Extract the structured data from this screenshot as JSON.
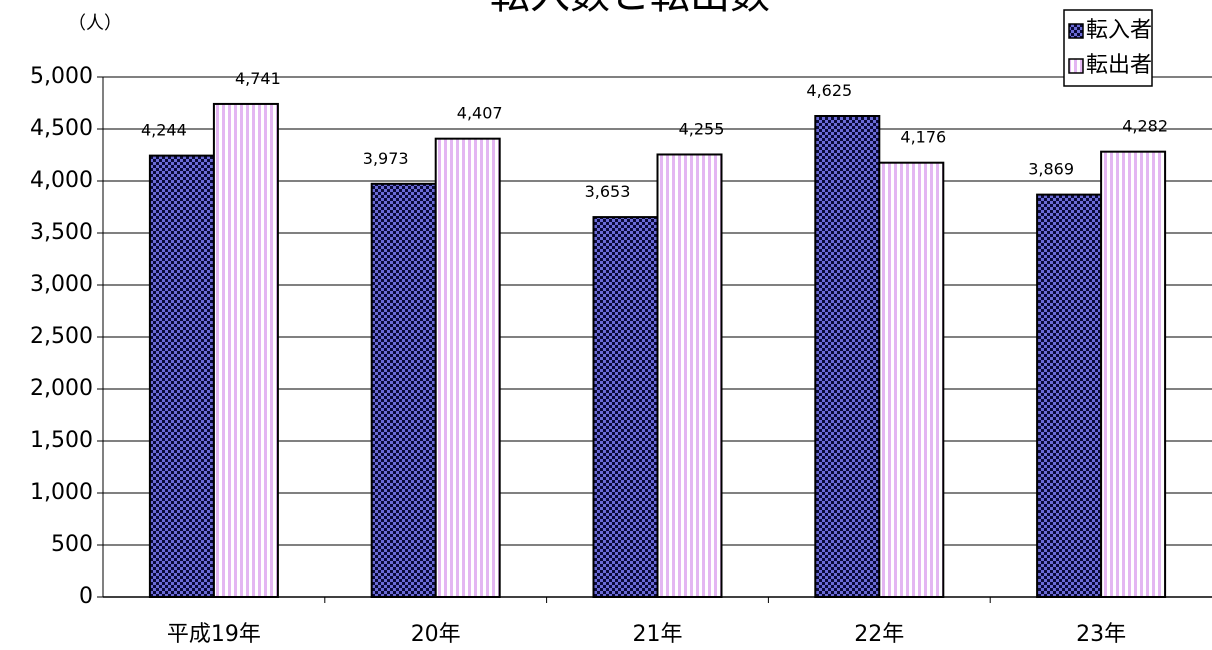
{
  "chart_data": {
    "type": "bar",
    "title": "転入数と転出数",
    "y_label": "（人）",
    "categories": [
      "平成19年",
      "20年",
      "21年",
      "22年",
      "23年"
    ],
    "series": [
      {
        "name": "転入者",
        "color": "#6b6bd6",
        "pattern": "checker",
        "values": [
          4244,
          3973,
          3653,
          4625,
          3869
        ],
        "value_labels": [
          "4,244",
          "3,973",
          "3,653",
          "4,625",
          "3,869"
        ]
      },
      {
        "name": "転出者",
        "color": "#e3b6f2",
        "pattern": "stripes",
        "values": [
          4741,
          4407,
          4255,
          4176,
          4282
        ],
        "value_labels": [
          "4,741",
          "4,407",
          "4,255",
          "4,176",
          "4,282"
        ]
      }
    ],
    "ylim": [
      0,
      5000
    ],
    "yticks": [
      0,
      500,
      {
        "value": 1000,
        "label": "1,000"
      },
      {
        "value": 1500,
        "label": "1,500"
      },
      {
        "value": 2000,
        "label": "2,000"
      },
      {
        "value": 2500,
        "label": "2,500"
      },
      {
        "value": 3000,
        "label": "3,000"
      },
      {
        "value": 3500,
        "label": "3,500"
      },
      {
        "value": 4000,
        "label": "4,000"
      },
      {
        "value": 4500,
        "label": "4,500"
      },
      {
        "value": 5000,
        "label": "5,000"
      }
    ],
    "grid": true,
    "legend": "top-right"
  }
}
